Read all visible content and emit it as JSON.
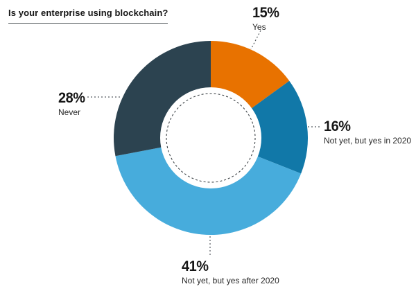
{
  "title": "Is your enterprise using blockchain?",
  "chart_data": {
    "type": "pie",
    "subtype": "donut",
    "title": "Is your enterprise using blockchain?",
    "start_angle_deg": 0,
    "direction": "clockwise",
    "inner_radius_ratio": 0.52,
    "units": "%",
    "legend_position": "callout-labels",
    "segments": [
      {
        "key": "yes",
        "label": "Yes",
        "value": 15,
        "pct_label": "15%",
        "color": "#E87200"
      },
      {
        "key": "in-2020",
        "label": "Not yet, but yes in 2020",
        "value": 16,
        "pct_label": "16%",
        "color": "#1178A8"
      },
      {
        "key": "after-2020",
        "label": "Not yet, but yes after 2020",
        "value": 41,
        "pct_label": "41%",
        "color": "#47ACDC"
      },
      {
        "key": "never",
        "label": "Never",
        "value": 28,
        "pct_label": "28%",
        "color": "#2C4350"
      }
    ]
  }
}
